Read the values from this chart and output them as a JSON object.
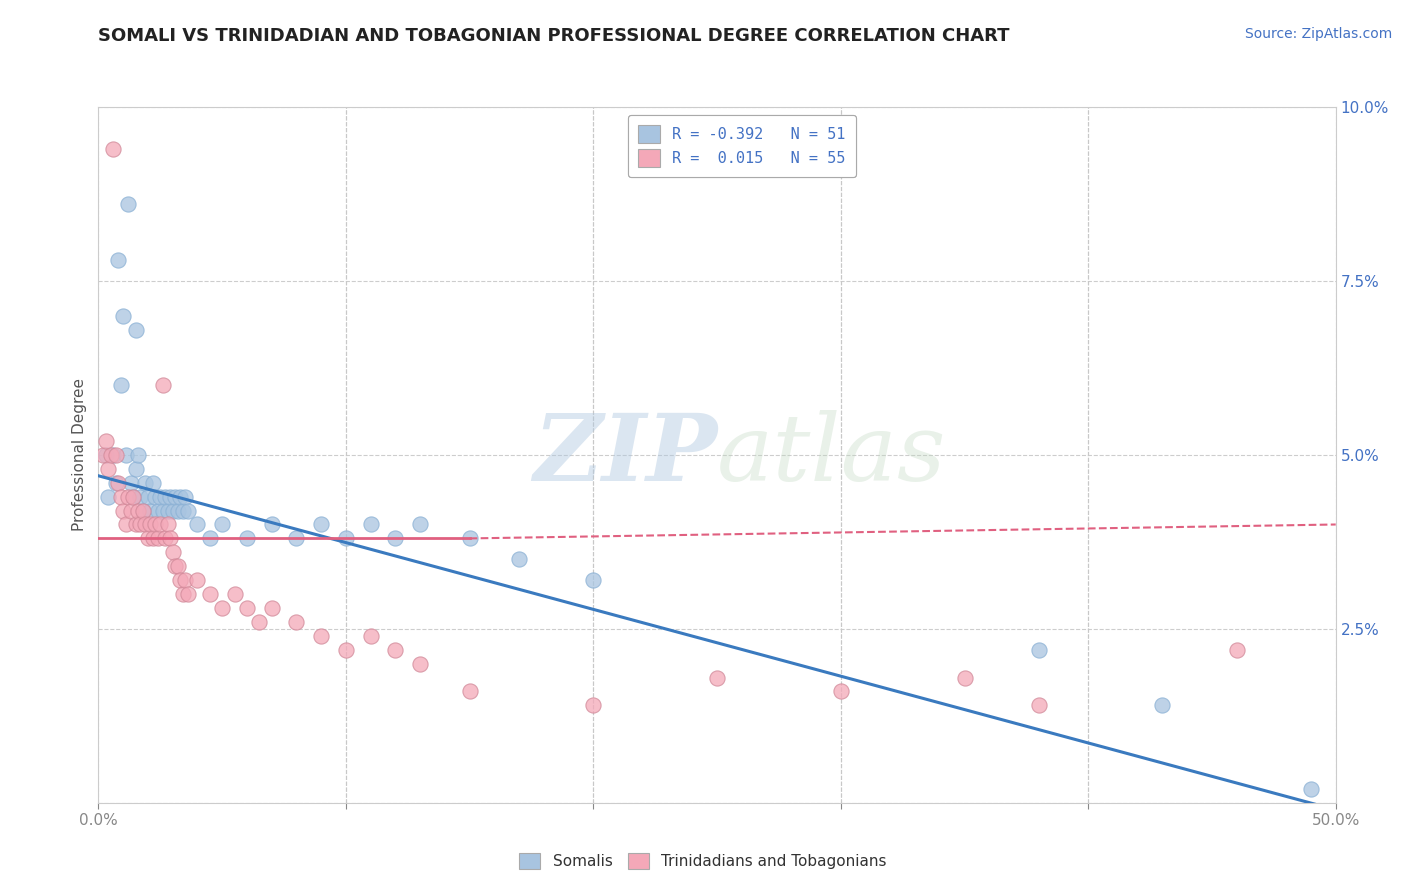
{
  "title": "SOMALI VS TRINIDADIAN AND TOBAGONIAN PROFESSIONAL DEGREE CORRELATION CHART",
  "source": "Source: ZipAtlas.com",
  "ylabel": "Professional Degree",
  "xlim": [
    0.0,
    0.5
  ],
  "ylim": [
    0.0,
    0.1
  ],
  "legend_r_somali": "-0.392",
  "legend_n_somali": "51",
  "legend_r_trini": "0.015",
  "legend_n_trini": "55",
  "somali_color": "#a8c4e0",
  "trini_color": "#f4a8b8",
  "somali_line_color": "#3a7abf",
  "trini_line_color": "#e06080",
  "watermark_zip": "ZIP",
  "watermark_atlas": "atlas",
  "background_color": "#ffffff",
  "grid_color": "#c8c8c8",
  "somali_points": [
    [
      0.003,
      0.05
    ],
    [
      0.008,
      0.078
    ],
    [
      0.01,
      0.07
    ],
    [
      0.012,
      0.086
    ],
    [
      0.015,
      0.068
    ],
    [
      0.004,
      0.044
    ],
    [
      0.006,
      0.05
    ],
    [
      0.007,
      0.046
    ],
    [
      0.009,
      0.06
    ],
    [
      0.011,
      0.05
    ],
    [
      0.013,
      0.046
    ],
    [
      0.014,
      0.044
    ],
    [
      0.015,
      0.048
    ],
    [
      0.016,
      0.05
    ],
    [
      0.017,
      0.044
    ],
    [
      0.018,
      0.042
    ],
    [
      0.019,
      0.046
    ],
    [
      0.02,
      0.044
    ],
    [
      0.021,
      0.042
    ],
    [
      0.022,
      0.046
    ],
    [
      0.023,
      0.044
    ],
    [
      0.024,
      0.042
    ],
    [
      0.025,
      0.044
    ],
    [
      0.026,
      0.042
    ],
    [
      0.027,
      0.044
    ],
    [
      0.028,
      0.042
    ],
    [
      0.029,
      0.044
    ],
    [
      0.03,
      0.042
    ],
    [
      0.031,
      0.044
    ],
    [
      0.032,
      0.042
    ],
    [
      0.033,
      0.044
    ],
    [
      0.034,
      0.042
    ],
    [
      0.035,
      0.044
    ],
    [
      0.036,
      0.042
    ],
    [
      0.04,
      0.04
    ],
    [
      0.045,
      0.038
    ],
    [
      0.05,
      0.04
    ],
    [
      0.06,
      0.038
    ],
    [
      0.07,
      0.04
    ],
    [
      0.08,
      0.038
    ],
    [
      0.09,
      0.04
    ],
    [
      0.1,
      0.038
    ],
    [
      0.11,
      0.04
    ],
    [
      0.12,
      0.038
    ],
    [
      0.13,
      0.04
    ],
    [
      0.15,
      0.038
    ],
    [
      0.17,
      0.035
    ],
    [
      0.2,
      0.032
    ],
    [
      0.38,
      0.022
    ],
    [
      0.43,
      0.014
    ],
    [
      0.49,
      0.002
    ]
  ],
  "trini_points": [
    [
      0.002,
      0.05
    ],
    [
      0.003,
      0.052
    ],
    [
      0.004,
      0.048
    ],
    [
      0.005,
      0.05
    ],
    [
      0.006,
      0.094
    ],
    [
      0.007,
      0.05
    ],
    [
      0.008,
      0.046
    ],
    [
      0.009,
      0.044
    ],
    [
      0.01,
      0.042
    ],
    [
      0.011,
      0.04
    ],
    [
      0.012,
      0.044
    ],
    [
      0.013,
      0.042
    ],
    [
      0.014,
      0.044
    ],
    [
      0.015,
      0.04
    ],
    [
      0.016,
      0.042
    ],
    [
      0.017,
      0.04
    ],
    [
      0.018,
      0.042
    ],
    [
      0.019,
      0.04
    ],
    [
      0.02,
      0.038
    ],
    [
      0.021,
      0.04
    ],
    [
      0.022,
      0.038
    ],
    [
      0.023,
      0.04
    ],
    [
      0.024,
      0.038
    ],
    [
      0.025,
      0.04
    ],
    [
      0.026,
      0.06
    ],
    [
      0.027,
      0.038
    ],
    [
      0.028,
      0.04
    ],
    [
      0.029,
      0.038
    ],
    [
      0.03,
      0.036
    ],
    [
      0.031,
      0.034
    ],
    [
      0.032,
      0.034
    ],
    [
      0.033,
      0.032
    ],
    [
      0.034,
      0.03
    ],
    [
      0.035,
      0.032
    ],
    [
      0.036,
      0.03
    ],
    [
      0.04,
      0.032
    ],
    [
      0.045,
      0.03
    ],
    [
      0.05,
      0.028
    ],
    [
      0.055,
      0.03
    ],
    [
      0.06,
      0.028
    ],
    [
      0.065,
      0.026
    ],
    [
      0.07,
      0.028
    ],
    [
      0.08,
      0.026
    ],
    [
      0.09,
      0.024
    ],
    [
      0.1,
      0.022
    ],
    [
      0.11,
      0.024
    ],
    [
      0.12,
      0.022
    ],
    [
      0.13,
      0.02
    ],
    [
      0.15,
      0.016
    ],
    [
      0.2,
      0.014
    ],
    [
      0.25,
      0.018
    ],
    [
      0.3,
      0.016
    ],
    [
      0.35,
      0.018
    ],
    [
      0.38,
      0.014
    ],
    [
      0.46,
      0.022
    ]
  ],
  "somali_line": {
    "x0": 0.0,
    "y0": 0.047,
    "x1": 0.5,
    "y1": -0.001
  },
  "trini_line_solid": {
    "x0": 0.0,
    "y0": 0.038,
    "x1": 0.15,
    "y1": 0.038
  },
  "trini_line_dashed": {
    "x0": 0.15,
    "y0": 0.038,
    "x1": 0.5,
    "y1": 0.04
  }
}
